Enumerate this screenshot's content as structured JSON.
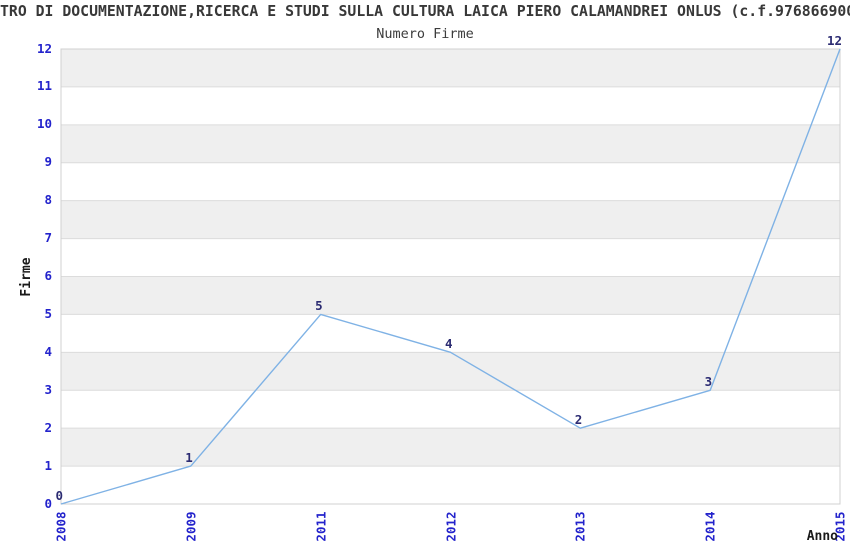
{
  "header": {
    "title": "TRO DI DOCUMENTAZIONE,RICERCA E STUDI SULLA CULTURA LAICA PIERO CALAMANDREI ONLUS (c.f.976866900",
    "subtitle": "Numero Firme"
  },
  "chart_data": {
    "type": "line",
    "title": "Numero Firme",
    "categories": [
      "2008",
      "2009",
      "2011",
      "2012",
      "2013",
      "2014",
      "2015"
    ],
    "series": [
      {
        "name": "Numero Firme",
        "values": [
          0,
          1,
          5,
          4,
          2,
          3,
          12
        ]
      }
    ],
    "point_labels": [
      "0",
      "1",
      "5",
      "4",
      "2",
      "3",
      "12"
    ],
    "xlabel": "Anno",
    "ylabel": "Firme",
    "ylim": [
      0,
      12
    ],
    "yticks": [
      0,
      1,
      2,
      3,
      4,
      5,
      6,
      7,
      8,
      9,
      10,
      11,
      12
    ],
    "grid": "horizontal-bands-alternating",
    "legend": "none",
    "colors": {
      "line": "#7FB2E5",
      "tick_label": "#2323CC",
      "point_label": "#2B2B72",
      "title_text": "#383838",
      "band_gray": "#EFEFEF",
      "band_white": "#FFFFFF",
      "grid_line": "#DCDCDC",
      "plot_border": "#D0D0D0",
      "background": "#FFFFFF"
    }
  }
}
